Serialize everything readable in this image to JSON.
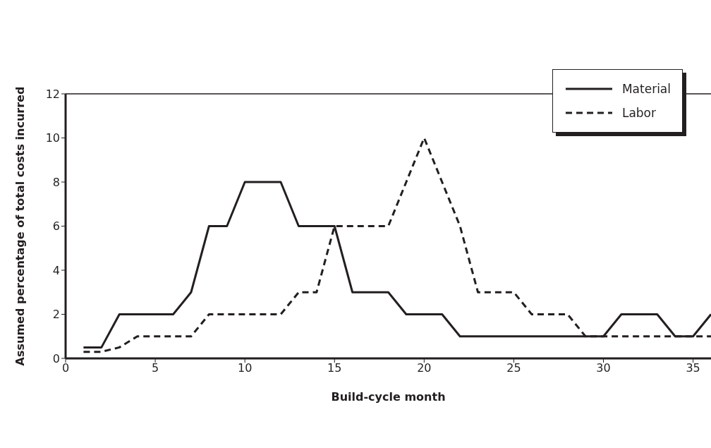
{
  "chart_data": {
    "type": "line",
    "xlabel": "Build-cycle month",
    "ylabel": "Assumed percentage of total costs incurred",
    "x": [
      1,
      2,
      3,
      4,
      5,
      6,
      7,
      8,
      9,
      10,
      11,
      12,
      13,
      14,
      15,
      16,
      17,
      18,
      19,
      20,
      21,
      22,
      23,
      24,
      25,
      26,
      27,
      28,
      29,
      30,
      31,
      32,
      33,
      34,
      35,
      36
    ],
    "series": [
      {
        "name": "Material",
        "color": "#231f20",
        "line_style": "solid",
        "values": [
          0.5,
          0.5,
          2,
          2,
          2,
          2,
          3,
          6,
          6,
          8,
          8,
          8,
          6,
          6,
          6,
          3,
          3,
          3,
          2,
          2,
          2,
          1,
          1,
          1,
          1,
          1,
          1,
          1,
          1,
          1,
          2,
          2,
          2,
          1,
          1,
          2
        ]
      },
      {
        "name": "Labor",
        "color": "#231f20",
        "line_style": "dashed",
        "values": [
          0.3,
          0.3,
          0.5,
          1,
          1,
          1,
          1,
          2,
          2,
          2,
          2,
          2,
          3,
          3,
          6,
          6,
          6,
          6,
          8,
          10,
          8,
          6,
          3,
          3,
          3,
          2,
          2,
          2,
          1,
          1,
          1,
          1,
          1,
          1,
          1,
          1
        ]
      }
    ],
    "xlim": [
      0,
      36
    ],
    "xticks": [
      0,
      5,
      10,
      15,
      20,
      25,
      30,
      35
    ],
    "ylim": [
      0,
      12
    ],
    "yticks": [
      0,
      2,
      4,
      6,
      8,
      10,
      12
    ],
    "grid": false,
    "legend": "top right",
    "marker": "none"
  }
}
